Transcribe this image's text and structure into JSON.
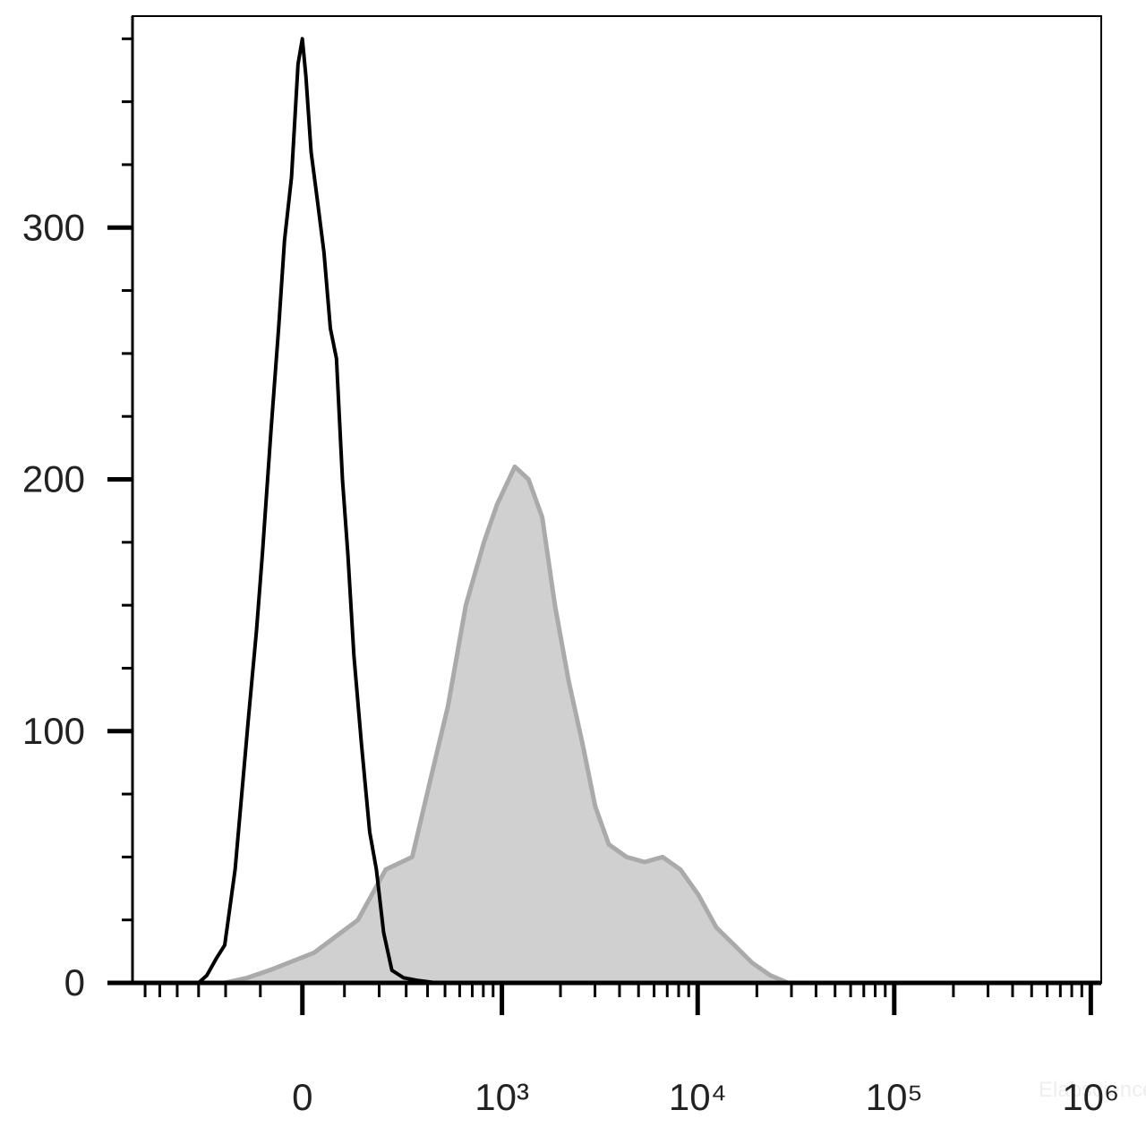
{
  "chart_data": {
    "type": "histogram-overlay",
    "xscale": "biexponential",
    "xlim": [
      -700,
      1130000
    ],
    "ylim": [
      0,
      384
    ],
    "xticks": [
      {
        "value": 0,
        "label": "0"
      },
      {
        "value": 1000,
        "label": "10³"
      },
      {
        "value": 10000,
        "label": "10⁴"
      },
      {
        "value": 100000,
        "label": "10⁵"
      },
      {
        "value": 1000000,
        "label": "10⁶"
      }
    ],
    "xminorticks": [
      -600,
      -500,
      -400,
      -300,
      -200,
      -100,
      100,
      200,
      300,
      400,
      500,
      600,
      700,
      800,
      900,
      2000,
      3000,
      4000,
      5000,
      6000,
      7000,
      8000,
      9000,
      20000,
      30000,
      40000,
      50000,
      60000,
      70000,
      80000,
      90000,
      200000,
      300000,
      400000,
      500000,
      600000,
      700000,
      800000,
      900000
    ],
    "yticks": [
      0,
      100,
      200,
      300
    ],
    "yminorticks": [
      25,
      50,
      75,
      125,
      150,
      175,
      225,
      250,
      275,
      325,
      350,
      375
    ],
    "watermark": "Elabscience",
    "series": [
      {
        "color": "#aaaaaa",
        "fill": "#d0d0d0",
        "x": [
          -203,
          -135,
          -77,
          27,
          136,
          222,
          326,
          413,
          519,
          647,
          806,
          944,
          1166,
          1372,
          1612,
          1873,
          2200,
          2590,
          3010,
          3530,
          4350,
          5370,
          6630,
          8170,
          10080,
          12440,
          15360,
          18900,
          23400,
          28900
        ],
        "values": [
          0,
          2,
          5,
          12,
          25,
          45,
          50,
          80,
          110,
          150,
          175,
          190,
          205,
          200,
          185,
          150,
          120,
          95,
          70,
          55,
          50,
          48,
          50,
          45,
          35,
          22,
          15,
          8,
          3,
          0
        ]
      },
      {
        "color": "#000000",
        "x": [
          -690,
          -300,
          -267,
          -230,
          -203,
          -170,
          -131,
          -110,
          -95,
          -73,
          -55,
          -41,
          -25,
          -10,
          0,
          8,
          20,
          35,
          50,
          65,
          80,
          95,
          109,
          125,
          146,
          170,
          191,
          215,
          244,
          290,
          350,
          450,
          1100000
        ],
        "values": [
          0,
          0,
          3,
          10,
          15,
          45,
          106,
          140,
          170,
          220,
          260,
          295,
          320,
          365,
          375,
          360,
          330,
          310,
          290,
          260,
          248,
          200,
          170,
          130,
          95,
          60,
          45,
          20,
          5,
          2,
          1,
          0,
          0
        ]
      }
    ]
  }
}
